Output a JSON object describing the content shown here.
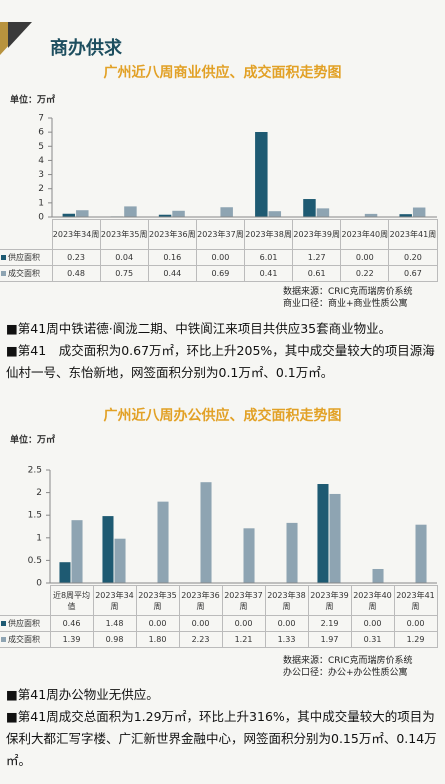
{
  "header": {
    "title": "商办供求"
  },
  "chart_data": [
    {
      "type": "bar",
      "title": "广州近八周商业供应、成交面积走势图",
      "unit_label": "单位：万㎡",
      "categories": [
        "2023年34周",
        "2023年35周",
        "2023年36周",
        "2023年37周",
        "2023年38周",
        "2023年39周",
        "2023年40周",
        "2023年41周"
      ],
      "series": [
        {
          "name": "供应面积",
          "color": "#1e5a72",
          "values": [
            0.23,
            0.04,
            0.16,
            0,
            6.01,
            1.27,
            0,
            0.2
          ],
          "value_labels": [
            "0.23",
            "0.04",
            "0.16",
            "0.00",
            "6.01",
            "1.27",
            "0.00",
            "0.20"
          ]
        },
        {
          "name": "成交面积",
          "color": "#8ea4b2",
          "values": [
            0.48,
            0.75,
            0.44,
            0.69,
            0.41,
            0.61,
            0.22,
            0.67
          ],
          "value_labels": [
            "0.48",
            "0.75",
            "0.44",
            "0.69",
            "0.41",
            "0.61",
            "0.22",
            "0.67"
          ]
        }
      ],
      "ylim": [
        0,
        7
      ],
      "yticks": [
        0,
        1,
        2,
        3,
        4,
        5,
        6,
        7
      ],
      "source_lines": [
        "数据来源：CRIC克而瑞房价系统",
        "商业口径：商业+商业性质公寓"
      ]
    },
    {
      "type": "bar",
      "title": "广州近八周办公供应、成交面积走势图",
      "unit_label": "单位：万㎡",
      "categories": [
        "近8周平均值",
        "2023年34周",
        "2023年35周",
        "2023年36周",
        "2023年37周",
        "2023年38周",
        "2023年39周",
        "2023年40周",
        "2023年41周"
      ],
      "series": [
        {
          "name": "供应面积",
          "color": "#1e5a72",
          "values": [
            0.46,
            1.48,
            0,
            0,
            0,
            0,
            2.19,
            0,
            0
          ],
          "value_labels": [
            "0.46",
            "1.48",
            "0.00",
            "0.00",
            "0.00",
            "0.00",
            "2.19",
            "0.00",
            "0.00"
          ]
        },
        {
          "name": "成交面积",
          "color": "#8ea4b2",
          "values": [
            1.39,
            0.98,
            1.8,
            2.23,
            1.21,
            1.33,
            1.97,
            0.31,
            1.29
          ],
          "value_labels": [
            "1.39",
            "0.98",
            "1.80",
            "2.23",
            "1.21",
            "1.33",
            "1.97",
            "0.31",
            "1.29"
          ]
        }
      ],
      "ylim": [
        0,
        2.5
      ],
      "yticks": [
        0,
        0.5,
        1,
        1.5,
        2,
        2.5
      ],
      "source_lines": [
        "数据来源：CRIC克而瑞房价系统",
        "办公口径：办公+办公性质公寓"
      ]
    }
  ],
  "sections": [
    {
      "paragraphs": [
        "■第41周中铁诺德·阆泷二期、中铁阆江来项目共供应35套商业物业。",
        "■第41　成交面积为0.67万㎡，环比上升205%，其中成交量较大的项目源海仙村一号、东怡新地，网签面积分别为0.1万㎡、0.1万㎡。"
      ]
    },
    {
      "paragraphs": [
        "■第41周办公物业无供应。",
        "■第41周成交总面积为1.29万㎡，环比上升316%，其中成交量较大的项目为保利大都汇写字楼、广汇新世界金融中心，网签面积分别为0.15万㎡、0.14万㎡。"
      ]
    }
  ]
}
